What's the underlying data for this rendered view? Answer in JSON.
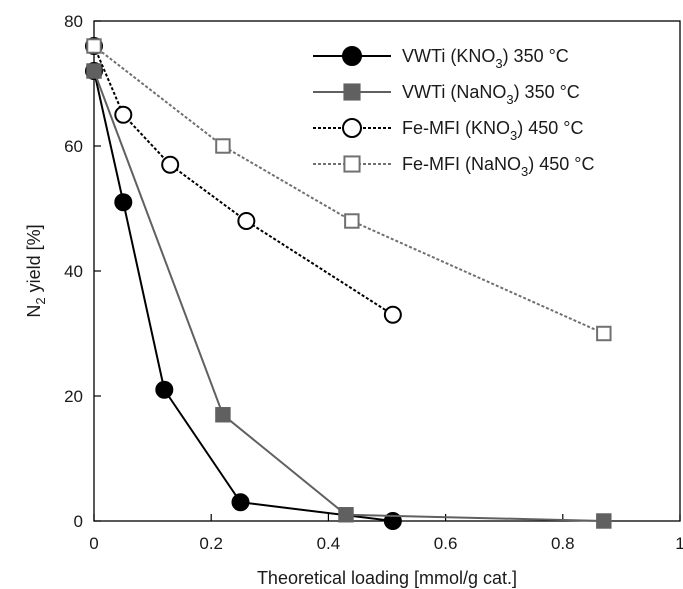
{
  "chart_data": {
    "type": "line",
    "xlabel": "Theoretical loading [mmol/g cat.]",
    "ylabel": {
      "main": "N",
      "sub": "2",
      "rest": " yield [%]"
    },
    "xlim": [
      0,
      1
    ],
    "ylim": [
      0,
      80
    ],
    "xticks": [
      {
        "value": 0,
        "label": "0"
      },
      {
        "value": 0.2,
        "label": "0.2"
      },
      {
        "value": 0.4,
        "label": "0.4"
      },
      {
        "value": 0.6,
        "label": "0.6"
      },
      {
        "value": 0.8,
        "label": "0.8"
      },
      {
        "value": 1,
        "label": "1"
      }
    ],
    "yticks": [
      {
        "value": 0,
        "label": "0"
      },
      {
        "value": 20,
        "label": "20"
      },
      {
        "value": 40,
        "label": "40"
      },
      {
        "value": 60,
        "label": "60"
      },
      {
        "value": 80,
        "label": "80"
      }
    ],
    "grid": false,
    "legend_position": "top-right",
    "series": [
      {
        "name": "VWTi (KNO3) 350 °C",
        "legend": {
          "pre": "VWTi (KNO",
          "sub": "3",
          "post": ") 350 °C"
        },
        "color": "#000000",
        "line_style": "solid",
        "marker": "circle",
        "marker_fill": "filled",
        "x": [
          0,
          0.05,
          0.12,
          0.25,
          0.51
        ],
        "y": [
          72,
          51,
          21,
          3,
          0
        ]
      },
      {
        "name": "VWTi (NaNO3) 350 °C",
        "legend": {
          "pre": "VWTi (NaNO",
          "sub": "3",
          "post": ") 350 °C"
        },
        "color": "#606060",
        "line_style": "solid",
        "marker": "square",
        "marker_fill": "filled",
        "x": [
          0,
          0.22,
          0.43,
          0.87
        ],
        "y": [
          72,
          17,
          1,
          0
        ]
      },
      {
        "name": "Fe-MFI (KNO3) 450 °C",
        "legend": {
          "pre": "Fe-MFI (KNO",
          "sub": "3",
          "post": ") 450 °C"
        },
        "color": "#000000",
        "line_style": "dotted",
        "marker": "circle",
        "marker_fill": "open",
        "x": [
          0,
          0.05,
          0.13,
          0.26,
          0.51
        ],
        "y": [
          76,
          65,
          57,
          48,
          33
        ]
      },
      {
        "name": "Fe-MFI (NaNO3) 450 °C",
        "legend": {
          "pre": "Fe-MFI (NaNO",
          "sub": "3",
          "post": ") 450 °C"
        },
        "color": "#707070",
        "line_style": "dotted",
        "marker": "square",
        "marker_fill": "open",
        "x": [
          0,
          0.22,
          0.44,
          0.87
        ],
        "y": [
          76,
          60,
          48,
          30
        ]
      }
    ]
  }
}
